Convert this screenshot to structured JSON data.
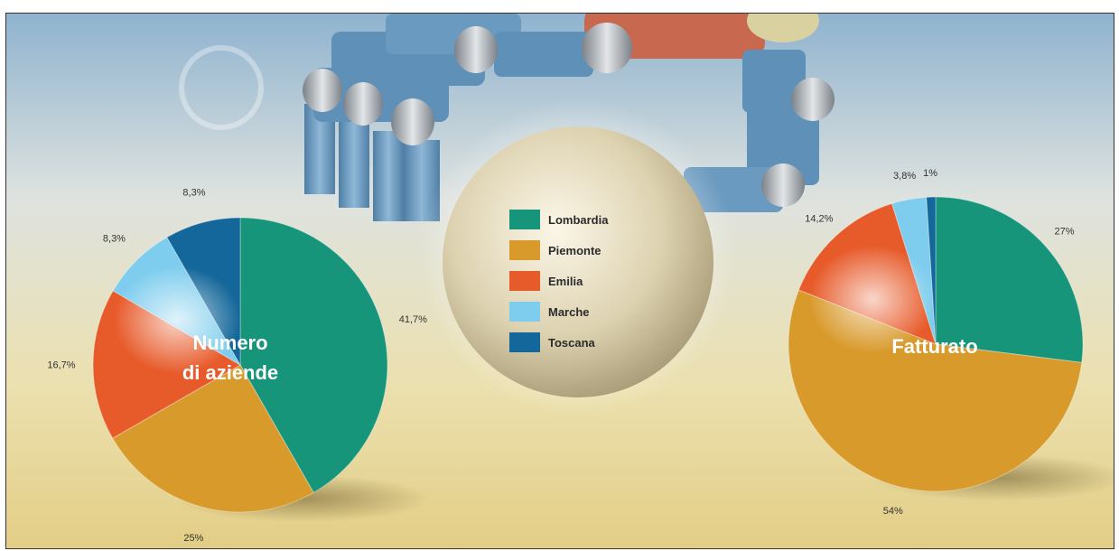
{
  "colors": {
    "Lombardia": "#16957a",
    "Piemonte": "#d99a2c",
    "Emilia": "#e75a2a",
    "Marche": "#7ecdee",
    "Toscana": "#14679a"
  },
  "legend": [
    "Lombardia",
    "Piemonte",
    "Emilia",
    "Marche",
    "Toscana"
  ],
  "chart_data": [
    {
      "type": "pie",
      "title": [
        "Numero",
        "di aziende"
      ],
      "slices": [
        {
          "category": "Lombardia",
          "value": 41.7,
          "label": "41,7%"
        },
        {
          "category": "Piemonte",
          "value": 25,
          "label": "25%"
        },
        {
          "category": "Emilia",
          "value": 16.7,
          "label": "16,7%"
        },
        {
          "category": "Marche",
          "value": 8.3,
          "label": "8,3%"
        },
        {
          "category": "Toscana",
          "value": 8.3,
          "label": "8,3%"
        }
      ]
    },
    {
      "type": "pie",
      "title": [
        "Fatturato"
      ],
      "slices": [
        {
          "category": "Lombardia",
          "value": 27,
          "label": "27%"
        },
        {
          "category": "Piemonte",
          "value": 54,
          "label": "54%"
        },
        {
          "category": "Emilia",
          "value": 14.2,
          "label": "14,2%"
        },
        {
          "category": "Marche",
          "value": 3.8,
          "label": "3,8%"
        },
        {
          "category": "Toscana",
          "value": 1,
          "label": "1%"
        }
      ]
    }
  ]
}
